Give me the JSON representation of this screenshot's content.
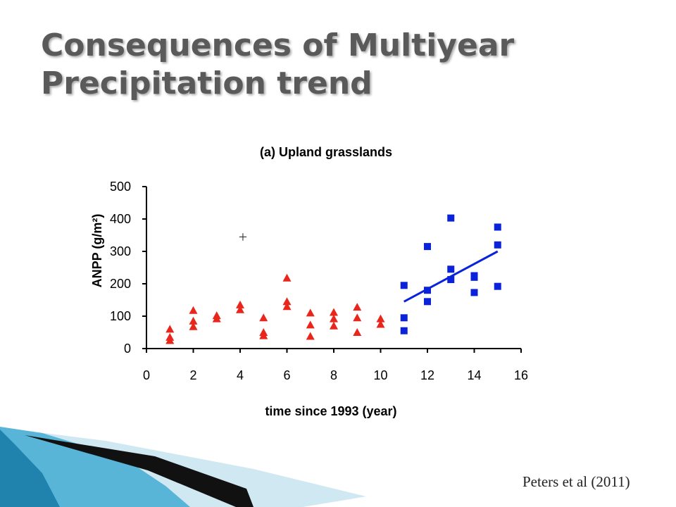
{
  "slide": {
    "title_line1": "Consequences of Multiyear",
    "title_line2": "Precipitation trend",
    "citation": "Peters et al (2011)",
    "stray_mark": "+"
  },
  "chart_data": {
    "type": "scatter",
    "title": "(a) Upland grasslands",
    "xlabel": "time since 1993 (year)",
    "ylabel": "ANPP (g/m²)",
    "xlim": [
      0,
      16
    ],
    "ylim": [
      0,
      500
    ],
    "xticks": [
      0,
      2,
      4,
      6,
      8,
      10,
      12,
      14,
      16
    ],
    "yticks": [
      0,
      100,
      200,
      300,
      400,
      500
    ],
    "grid": false,
    "series": [
      {
        "marker": "triangle",
        "color": "#e8261c",
        "points": [
          [
            1,
            60
          ],
          [
            1,
            35
          ],
          [
            1,
            25
          ],
          [
            2,
            118
          ],
          [
            2,
            85
          ],
          [
            2,
            68
          ],
          [
            3,
            102
          ],
          [
            3,
            92
          ],
          [
            4,
            135
          ],
          [
            4,
            120
          ],
          [
            5,
            95
          ],
          [
            5,
            50
          ],
          [
            5,
            40
          ],
          [
            6,
            218
          ],
          [
            6,
            145
          ],
          [
            6,
            130
          ],
          [
            7,
            110
          ],
          [
            7,
            73
          ],
          [
            7,
            38
          ],
          [
            8,
            112
          ],
          [
            8,
            92
          ],
          [
            8,
            70
          ],
          [
            9,
            128
          ],
          [
            9,
            95
          ],
          [
            9,
            50
          ],
          [
            10,
            92
          ],
          [
            10,
            75
          ]
        ]
      },
      {
        "marker": "square",
        "color": "#0a22d9",
        "points": [
          [
            11,
            195
          ],
          [
            11,
            95
          ],
          [
            11,
            55
          ],
          [
            12,
            315
          ],
          [
            12,
            180
          ],
          [
            12,
            145
          ],
          [
            13,
            403
          ],
          [
            13,
            245
          ],
          [
            13,
            213
          ],
          [
            14,
            225
          ],
          [
            14,
            220
          ],
          [
            14,
            173
          ],
          [
            15,
            375
          ],
          [
            15,
            320
          ],
          [
            15,
            192
          ]
        ]
      }
    ],
    "trendline": {
      "color": "#0a22d9",
      "from": [
        11,
        145
      ],
      "to": [
        15,
        300
      ]
    }
  }
}
